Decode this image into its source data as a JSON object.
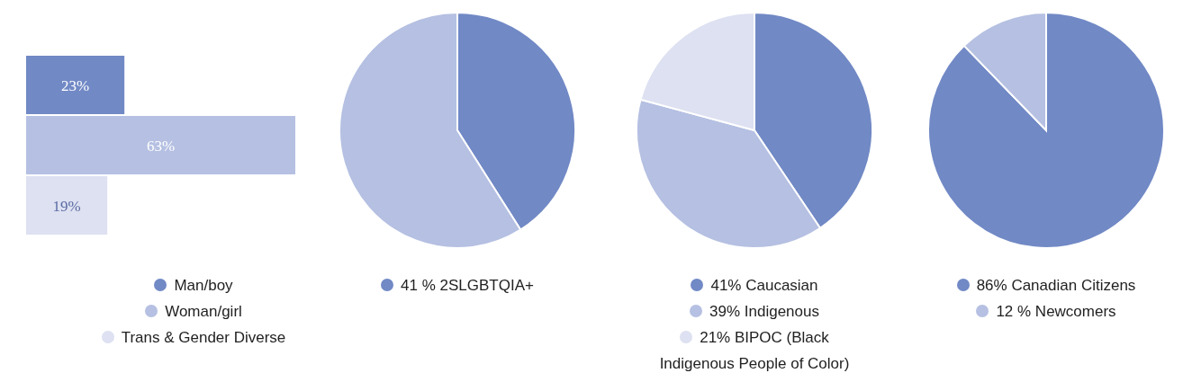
{
  "chart_data": [
    {
      "type": "bar",
      "orientation": "horizontal",
      "categories": [
        null
      ],
      "series": [
        {
          "name": "Man/boy",
          "color": "#7189c5",
          "values": [
            23
          ],
          "value_labels": [
            "23%"
          ]
        },
        {
          "name": "Woman/girl",
          "color": "#b5c0e2",
          "values": [
            63
          ],
          "value_labels": [
            "63%"
          ]
        },
        {
          "name": "Trans & Gender Diverse",
          "color": "#dde1f1",
          "values": [
            19
          ],
          "value_labels": [
            "19%"
          ]
        }
      ],
      "legend": "bottom"
    },
    {
      "type": "pie",
      "categories": [
        "41 % 2SLGBTQIA+",
        null
      ],
      "values": [
        41,
        59
      ],
      "colors": [
        "#7189c5",
        "#b5c0e2"
      ],
      "legend": "bottom"
    },
    {
      "type": "pie",
      "categories": [
        "41% Caucasian",
        "39% Indigenous",
        "21% BIPOC (Black Indigenous People of Color)"
      ],
      "values": [
        41,
        39,
        21
      ],
      "colors": [
        "#7189c5",
        "#b5c0e2",
        "#dde1f1"
      ],
      "legend": "bottom"
    },
    {
      "type": "pie",
      "categories": [
        "86% Canadian Citizens",
        "12 % Newcomers"
      ],
      "values": [
        86,
        12
      ],
      "colors": [
        "#7189c5",
        "#b5c0e2"
      ],
      "legend": "bottom"
    }
  ]
}
